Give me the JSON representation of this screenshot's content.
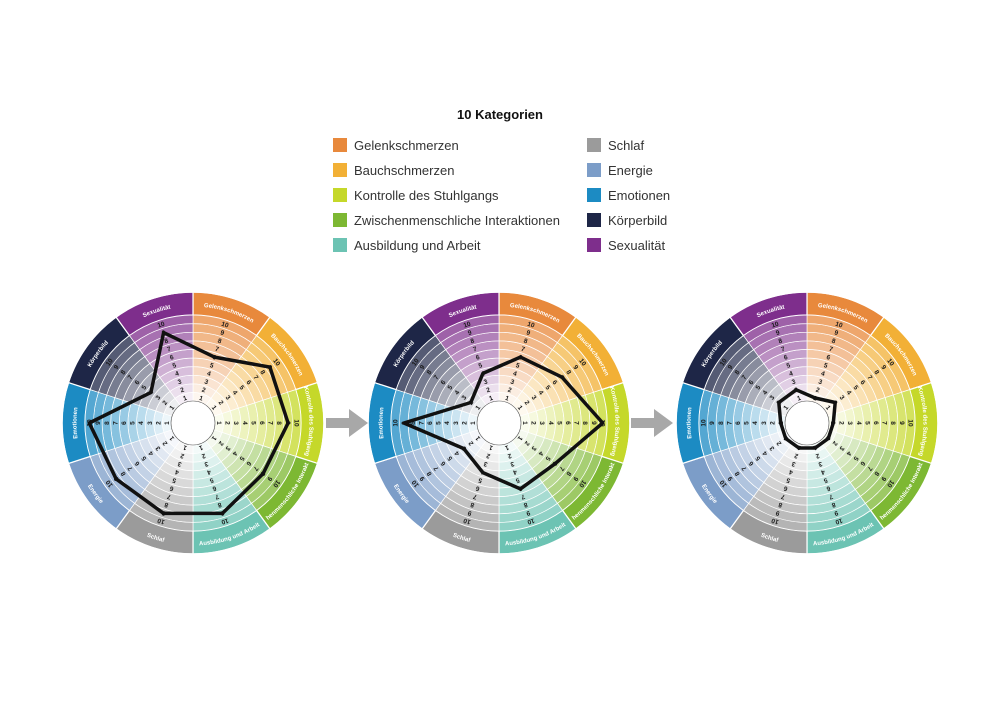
{
  "chart_data": {
    "type": "radar",
    "title": "10 Kategorien",
    "scale": [
      1,
      10
    ],
    "categories": [
      {
        "name": "Gelenkschmerzen",
        "color": "#E8893C"
      },
      {
        "name": "Bauchschmerzen",
        "color": "#F2B036"
      },
      {
        "name": "Kontrolle des Stuhlgangs",
        "color": "#C5D82A"
      },
      {
        "name": "Zwischenmenschliche Interaktionen",
        "color": "#7DB833"
      },
      {
        "name": "Ausbildung und Arbeit",
        "color": "#6CC3B3"
      },
      {
        "name": "Schlaf",
        "color": "#9B9B9B"
      },
      {
        "name": "Energie",
        "color": "#7C9DC8"
      },
      {
        "name": "Emotionen",
        "color": "#1C8BC3"
      },
      {
        "name": "Körperbild",
        "color": "#1E2647"
      },
      {
        "name": "Sexualität",
        "color": "#7E2E8C"
      }
    ],
    "wheels": [
      {
        "values": [
          6,
          9,
          9,
          8,
          9,
          9,
          9,
          10,
          4,
          9
        ]
      },
      {
        "values": [
          6,
          7,
          10,
          6,
          6,
          4,
          3,
          9,
          2,
          4
        ]
      },
      {
        "values": [
          1,
          2,
          1,
          1,
          1,
          1,
          1,
          1,
          2,
          2
        ]
      }
    ]
  }
}
